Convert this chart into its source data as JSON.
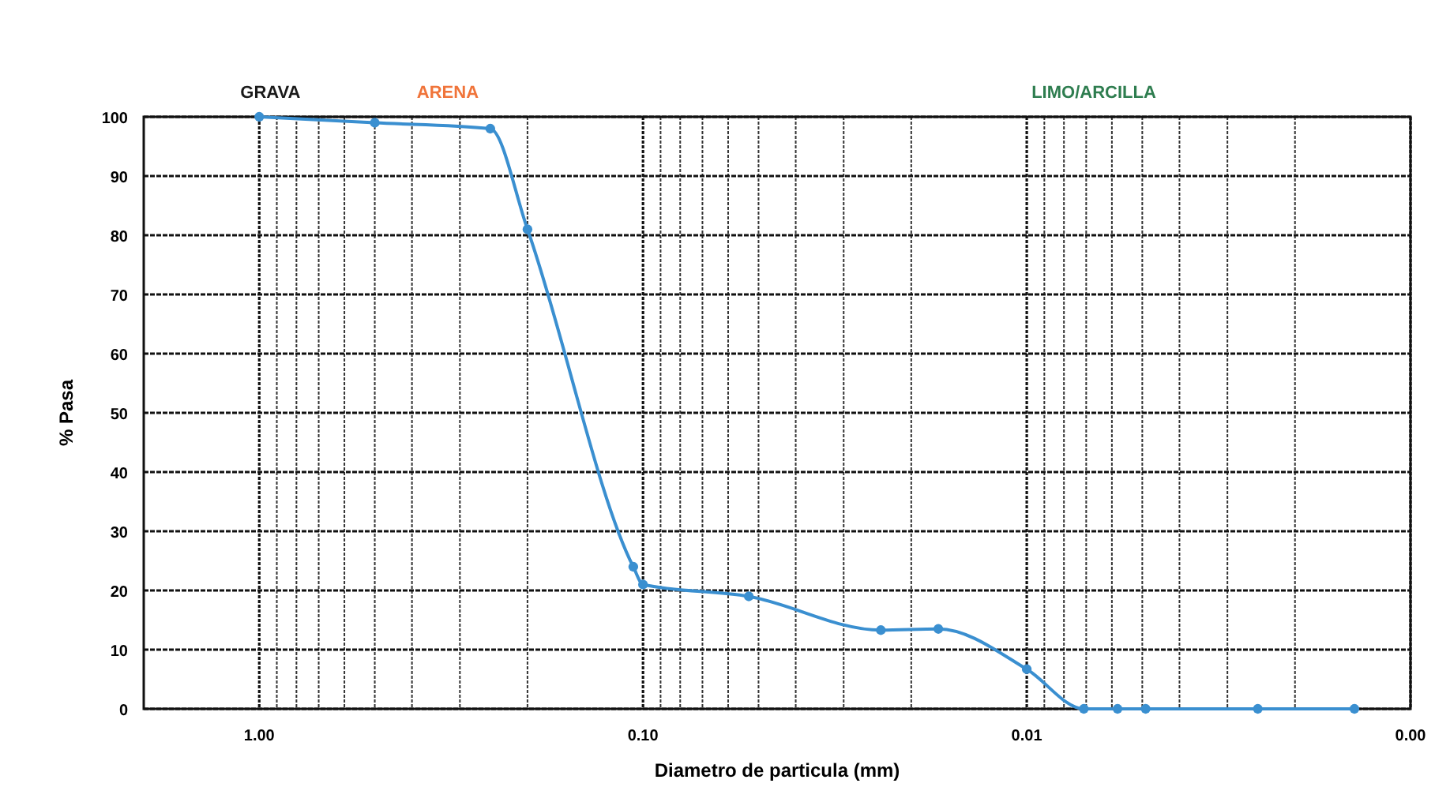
{
  "chart_data": {
    "type": "line",
    "xlabel": "Diametro de particula (mm)",
    "ylabel": "% Pasa",
    "annotations": [
      "GRAVA",
      "ARENA",
      "LIMO/ARCILLA"
    ],
    "log": "x",
    "xlim": [
      2,
      0.001
    ],
    "xticks": [
      {
        "value": 1,
        "label": "1.00"
      },
      {
        "value": 0.1,
        "label": "0.10"
      },
      {
        "value": 0.01,
        "label": "0.01"
      },
      {
        "value": 0.001,
        "label": "0.00"
      }
    ],
    "ylim": [
      0,
      100
    ],
    "yticks": [
      0,
      10,
      20,
      30,
      40,
      50,
      60,
      70,
      80,
      90,
      100
    ],
    "grid": true,
    "marker": "circle",
    "line_style": "solid",
    "series": [
      {
        "color": "#3a8fd0",
        "x": [
          1,
          0.5,
          0.25,
          0.2,
          0.106,
          0.1,
          0.053,
          0.024,
          0.017,
          0.01,
          0.0071,
          0.0058,
          0.0049,
          0.0025,
          0.0014
        ],
        "values": [
          100,
          99,
          98,
          81,
          24,
          21,
          19,
          13.3,
          13.5,
          6.7,
          0,
          0,
          0,
          0,
          0
        ]
      }
    ]
  }
}
